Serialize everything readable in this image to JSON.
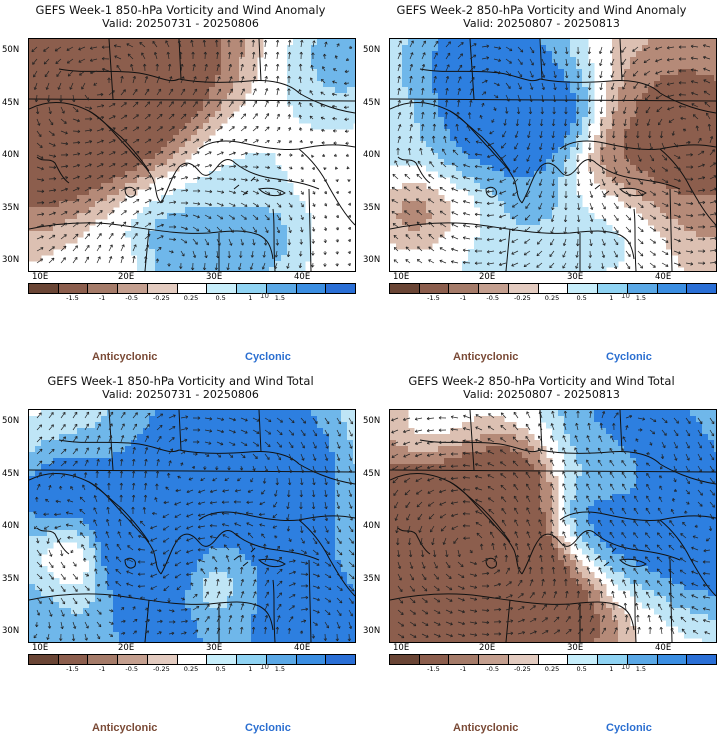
{
  "colors": {
    "strong_anti": "#8c5e4d",
    "anti": "#b58a78",
    "weak_anti": "#dcc0b2",
    "neutral": "#ffffff",
    "weak_cyc": "#bfe5f6",
    "cyc": "#6fb7ea",
    "strong_cyc": "#2d7fe0",
    "coast": "#111111",
    "arrow": "#222222",
    "anticyclonic_label": "#7a4a36",
    "cyclonic_label": "#2b6fd1"
  },
  "colorbar": {
    "ticks": [
      "-1.5",
      "-1",
      "-0.5",
      "-0.25",
      "0.25",
      "0.5",
      "1",
      "1.5"
    ],
    "scale_label": "10",
    "swatches": [
      "#6a4535",
      "#8c5e4d",
      "#a57b69",
      "#c49f8f",
      "#e3cbc0",
      "#ffffff",
      "#c7eefb",
      "#8fd3f3",
      "#5aa8e6",
      "#3b8ee2",
      "#2a6fd6"
    ]
  },
  "lat_labels": [
    "50N",
    "45N",
    "40N",
    "35N",
    "30N"
  ],
  "lon_labels": [
    "10E",
    "20E",
    "30E",
    "40E"
  ],
  "panels": [
    {
      "title": "GEFS Week-1 850-hPa Vorticity and Wind Anomaly",
      "valid": "Valid: 20250731 - 20250806",
      "anticyclonic_label": "Anticyclonic",
      "cyclonic_label": "Cyclonic",
      "kind": "anomaly",
      "seed": 11
    },
    {
      "title": "GEFS Week-2 850-hPa Vorticity and Wind Anomaly",
      "valid": "Valid: 20250807 - 20250813",
      "anticyclonic_label": "Anticyclonic",
      "cyclonic_label": "Cyclonic",
      "kind": "anomaly",
      "seed": 23
    },
    {
      "title": "GEFS Week-1 850-hPa Vorticity and Wind Total",
      "valid": "Valid: 20250731 - 20250806",
      "anticyclonic_label": "Anticyclonic",
      "cyclonic_label": "Cyclonic",
      "kind": "total",
      "seed": 37
    },
    {
      "title": "GEFS Week-2 850-hPa Vorticity and Wind Total",
      "valid": "Valid: 20250807 - 20250813",
      "anticyclonic_label": "Anticyclonic",
      "cyclonic_label": "Cyclonic",
      "kind": "total",
      "seed": 53
    }
  ]
}
